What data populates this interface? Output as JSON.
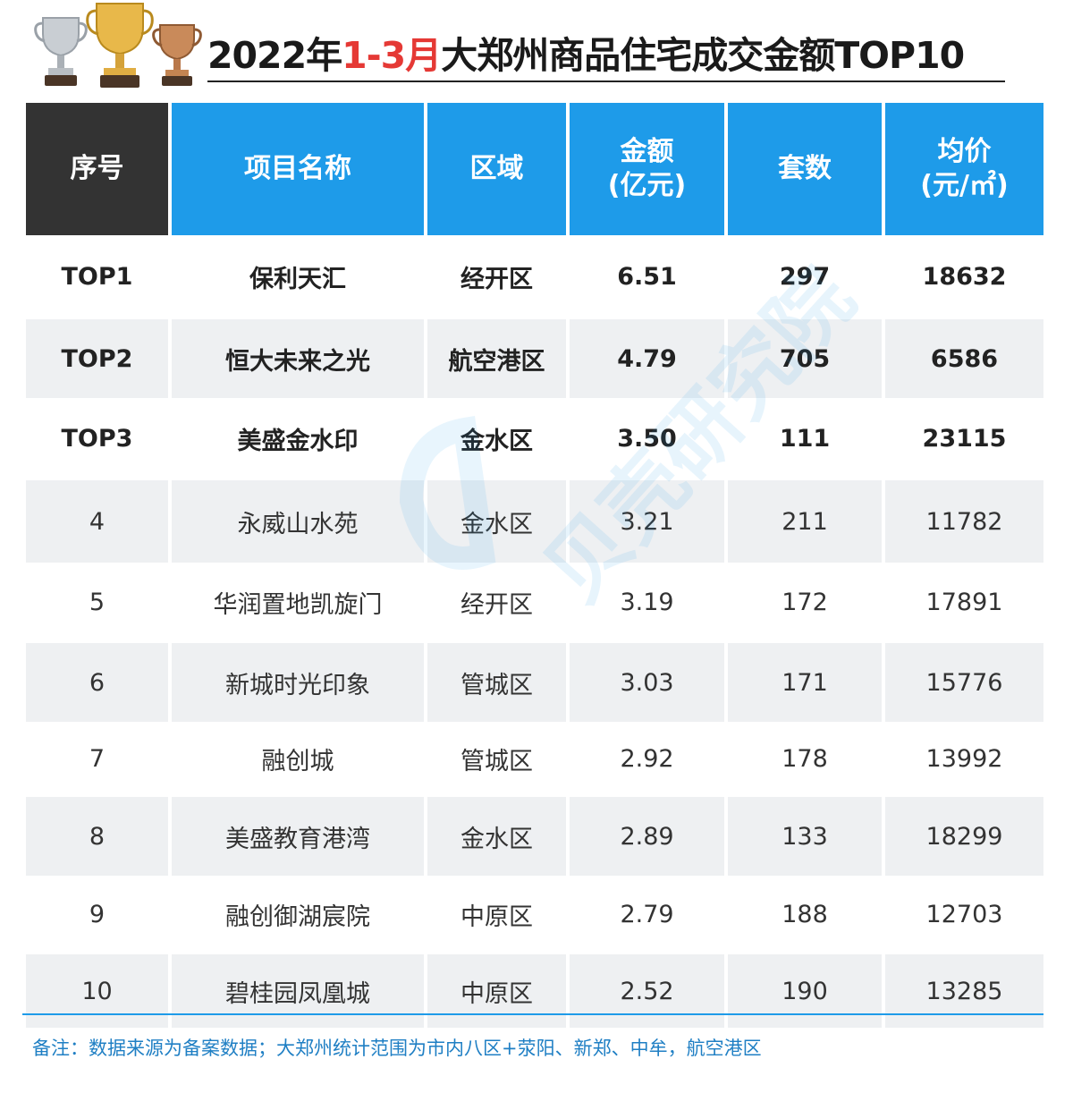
{
  "title": {
    "prefix": "2022年",
    "highlight": "1-3月",
    "suffix": "大郑州商品住宅成交金额TOP10"
  },
  "columns": [
    "序号",
    "项目名称",
    "区域",
    "金额\n(亿元)",
    "套数",
    "均价\n(元/㎡)"
  ],
  "rows": [
    {
      "rank": "TOP1",
      "name": "保利天汇",
      "area": "经开区",
      "amount": "6.51",
      "units": "297",
      "price": "18632"
    },
    {
      "rank": "TOP2",
      "name": "恒大未来之光",
      "area": "航空港区",
      "amount": "4.79",
      "units": "705",
      "price": "6586"
    },
    {
      "rank": "TOP3",
      "name": "美盛金水印",
      "area": "金水区",
      "amount": "3.50",
      "units": "111",
      "price": "23115"
    },
    {
      "rank": "4",
      "name": "永威山水苑",
      "area": "金水区",
      "amount": "3.21",
      "units": "211",
      "price": "11782"
    },
    {
      "rank": "5",
      "name": "华润置地凯旋门",
      "area": "经开区",
      "amount": "3.19",
      "units": "172",
      "price": "17891"
    },
    {
      "rank": "6",
      "name": "新城时光印象",
      "area": "管城区",
      "amount": "3.03",
      "units": "171",
      "price": "15776"
    },
    {
      "rank": "7",
      "name": "融创城",
      "area": "管城区",
      "amount": "2.92",
      "units": "178",
      "price": "13992"
    },
    {
      "rank": "8",
      "name": "美盛教育港湾",
      "area": "金水区",
      "amount": "2.89",
      "units": "133",
      "price": "18299"
    },
    {
      "rank": "9",
      "name": "融创御湖宸院",
      "area": "中原区",
      "amount": "2.79",
      "units": "188",
      "price": "12703"
    },
    {
      "rank": "10",
      "name": "碧桂园凤凰城",
      "area": "中原区",
      "amount": "2.52",
      "units": "190",
      "price": "13285"
    }
  ],
  "watermark": "贝壳研究院",
  "note": "备注：数据来源为备案数据；大郑州统计范围为市内八区+荥阳、新郑、中牟，航空港区",
  "colors": {
    "header_blue": "#1e9be9",
    "header_dark": "#333333",
    "highlight_red": "#e53935",
    "row_alt": "#eef0f2"
  }
}
